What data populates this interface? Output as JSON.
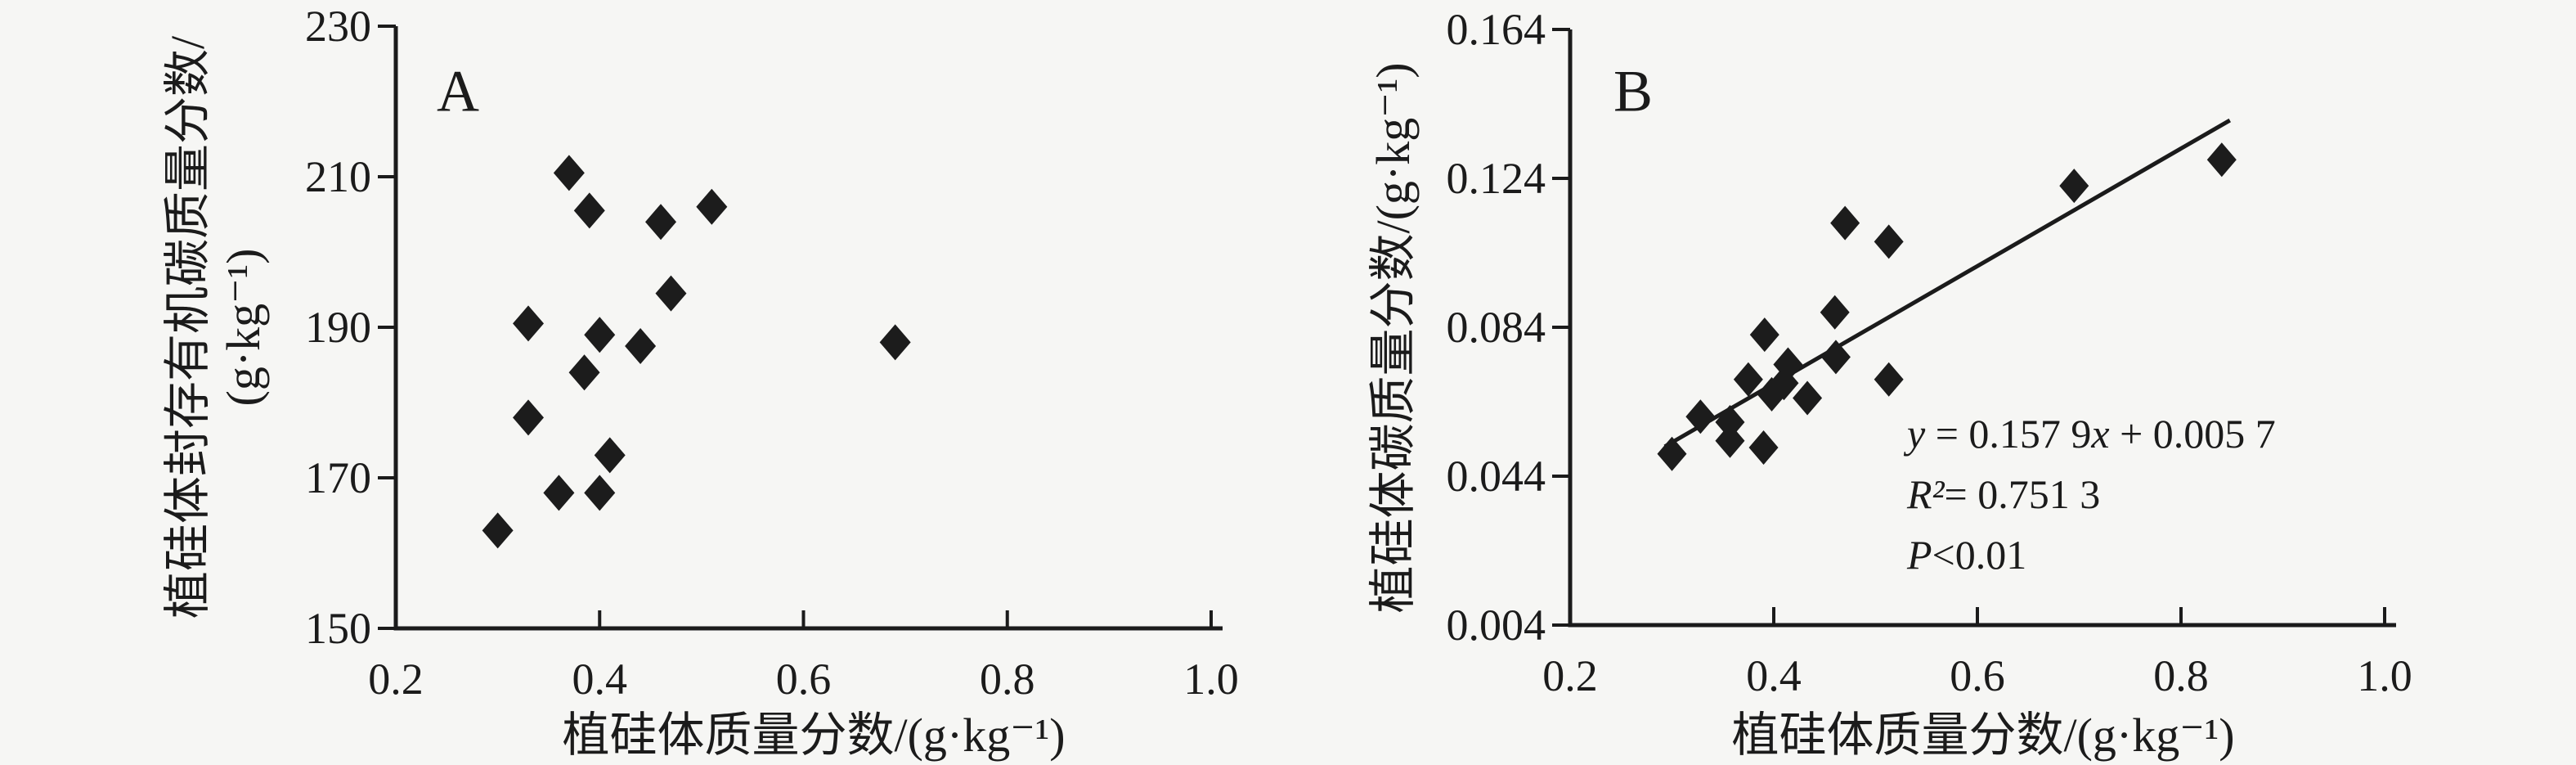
{
  "figure": {
    "background": "#f6f6f4",
    "ink": "#1b1b1b"
  },
  "chart_data": [
    {
      "id": "A",
      "type": "scatter",
      "panel_label": "A",
      "marker": "diamond",
      "grid": false,
      "xlabel": "植硅体质量分数/(g·kg⁻¹)",
      "ylabel_line1": "植硅体封存有机碳质量分数/",
      "ylabel_line2": "(g·kg⁻¹)",
      "xlim": [
        0.2,
        1.0
      ],
      "ylim": [
        150,
        230
      ],
      "x_ticks": [
        {
          "v": 0.2,
          "label": "0.2"
        },
        {
          "v": 0.4,
          "label": "0.4"
        },
        {
          "v": 0.6,
          "label": "0.6"
        },
        {
          "v": 0.8,
          "label": "0.8"
        },
        {
          "v": 1.0,
          "label": "1.0"
        }
      ],
      "y_ticks": [
        {
          "v": 150,
          "label": "150"
        },
        {
          "v": 170,
          "label": "170"
        },
        {
          "v": 190,
          "label": "190"
        },
        {
          "v": 210,
          "label": "210"
        },
        {
          "v": 230,
          "label": "230"
        }
      ],
      "points": [
        [
          0.37,
          210.5
        ],
        [
          0.39,
          205.5
        ],
        [
          0.46,
          204
        ],
        [
          0.51,
          206
        ],
        [
          0.47,
          194.5
        ],
        [
          0.33,
          190.5
        ],
        [
          0.4,
          189
        ],
        [
          0.44,
          187.5
        ],
        [
          0.69,
          188
        ],
        [
          0.385,
          184
        ],
        [
          0.33,
          178
        ],
        [
          0.41,
          173
        ],
        [
          0.36,
          168
        ],
        [
          0.4,
          168
        ],
        [
          0.3,
          163
        ]
      ]
    },
    {
      "id": "B",
      "type": "scatter",
      "panel_label": "B",
      "marker": "diamond",
      "grid": false,
      "xlabel": "植硅体质量分数/(g·kg⁻¹)",
      "ylabel": "植硅体碳质量分数/(g·kg⁻¹)",
      "xlim": [
        0.2,
        1.0
      ],
      "ylim": [
        0.004,
        0.164
      ],
      "x_ticks": [
        {
          "v": 0.2,
          "label": "0.2"
        },
        {
          "v": 0.4,
          "label": "0.4"
        },
        {
          "v": 0.6,
          "label": "0.6"
        },
        {
          "v": 0.8,
          "label": "0.8"
        },
        {
          "v": 1.0,
          "label": "1.0"
        }
      ],
      "y_ticks": [
        {
          "v": 0.004,
          "label": "0.004"
        },
        {
          "v": 0.044,
          "label": "0.044"
        },
        {
          "v": 0.084,
          "label": "0.084"
        },
        {
          "v": 0.124,
          "label": "0.124"
        },
        {
          "v": 0.164,
          "label": "0.164"
        }
      ],
      "points": [
        [
          0.3,
          0.05
        ],
        [
          0.328,
          0.06
        ],
        [
          0.357,
          0.0585
        ],
        [
          0.357,
          0.0535
        ],
        [
          0.39,
          0.0517
        ],
        [
          0.375,
          0.07
        ],
        [
          0.391,
          0.082
        ],
        [
          0.398,
          0.066
        ],
        [
          0.41,
          0.069
        ],
        [
          0.414,
          0.074
        ],
        [
          0.433,
          0.065
        ],
        [
          0.461,
          0.076
        ],
        [
          0.46,
          0.088
        ],
        [
          0.47,
          0.112
        ],
        [
          0.513,
          0.107
        ],
        [
          0.513,
          0.07
        ],
        [
          0.695,
          0.122
        ],
        [
          0.84,
          0.129
        ]
      ],
      "regression": {
        "slope": 0.1579,
        "intercept": 0.0057,
        "x_start": 0.293,
        "x_end": 0.848
      },
      "annotation": {
        "eq_y": "y",
        "eq_mid": " = 0.157 9",
        "eq_x": "x",
        "eq_tail": " + 0.005 7",
        "r2_sym": "R²",
        "r2_rest": "= 0.751 3",
        "p_sym": "P",
        "p_rest": "<0.01"
      }
    }
  ]
}
